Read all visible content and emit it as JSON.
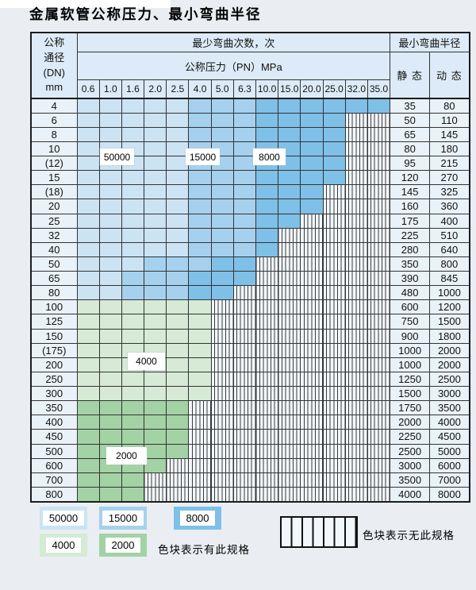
{
  "title": "金属软管公称压力、最小弯曲半径",
  "table": {
    "dn_header": [
      "公称",
      "通径",
      "(DN)",
      "mm"
    ],
    "bend_times_header": "最少弯曲次数，次",
    "pressure_header": "公称压力（PN）MPa",
    "radius_header": "最小弯曲半径",
    "static_header": "静 态",
    "dynamic_header": "动 态",
    "pressures": [
      "0.6",
      "1.0",
      "1.6",
      "2.0",
      "2.5",
      "4.0",
      "5.0",
      "6.3",
      "10.0",
      "15.0",
      "20.0",
      "25.0",
      "32.0",
      "35.0"
    ],
    "rows": [
      {
        "dn": "4",
        "fill": "blue",
        "shades": [
          4,
          7
        ],
        "last_colored_col": 13,
        "static": "35",
        "dynamic": "80"
      },
      {
        "dn": "6",
        "fill": "blue",
        "shades": [
          4,
          7
        ],
        "last_colored_col": 11,
        "static": "50",
        "dynamic": "110"
      },
      {
        "dn": "8",
        "fill": "blue",
        "shades": [
          4,
          7
        ],
        "last_colored_col": 11,
        "static": "65",
        "dynamic": "145"
      },
      {
        "dn": "10",
        "fill": "blue",
        "shades": [
          4,
          7
        ],
        "last_colored_col": 11,
        "static": "80",
        "dynamic": "180"
      },
      {
        "dn": "(12)",
        "fill": "blue",
        "shades": [
          4,
          7
        ],
        "last_colored_col": 11,
        "static": "95",
        "dynamic": "215"
      },
      {
        "dn": "15",
        "fill": "blue",
        "shades": [
          4,
          7
        ],
        "last_colored_col": 11,
        "static": "120",
        "dynamic": "270"
      },
      {
        "dn": "(18)",
        "fill": "blue",
        "shades": [
          4,
          7
        ],
        "last_colored_col": 10,
        "static": "145",
        "dynamic": "325"
      },
      {
        "dn": "20",
        "fill": "blue",
        "shades": [
          4,
          7
        ],
        "last_colored_col": 10,
        "static": "160",
        "dynamic": "360"
      },
      {
        "dn": "25",
        "fill": "blue",
        "shades": [
          4,
          7
        ],
        "last_colored_col": 9,
        "static": "175",
        "dynamic": "400"
      },
      {
        "dn": "32",
        "fill": "blue",
        "shades": [
          4,
          7
        ],
        "last_colored_col": 8,
        "static": "225",
        "dynamic": "510"
      },
      {
        "dn": "40",
        "fill": "blue",
        "shades": [
          4,
          7
        ],
        "last_colored_col": 8,
        "static": "280",
        "dynamic": "640"
      },
      {
        "dn": "50",
        "fill": "blue",
        "shades": [
          2,
          5
        ],
        "last_colored_col": 7,
        "static": "350",
        "dynamic": "800"
      },
      {
        "dn": "65",
        "fill": "blue",
        "shades": [
          1,
          4
        ],
        "last_colored_col": 7,
        "static": "390",
        "dynamic": "845"
      },
      {
        "dn": "80",
        "fill": "blue",
        "shades": [
          1,
          4
        ],
        "last_colored_col": 6,
        "static": "480",
        "dynamic": "1000"
      },
      {
        "dn": "100",
        "fill": "g1",
        "last_colored_col": 5,
        "static": "600",
        "dynamic": "1200"
      },
      {
        "dn": "125",
        "fill": "g1",
        "last_colored_col": 5,
        "static": "750",
        "dynamic": "1500"
      },
      {
        "dn": "150",
        "fill": "g1",
        "last_colored_col": 5,
        "static": "900",
        "dynamic": "1800"
      },
      {
        "dn": "(175)",
        "fill": "g1",
        "last_colored_col": 5,
        "static": "1000",
        "dynamic": "2000"
      },
      {
        "dn": "200",
        "fill": "g1",
        "last_colored_col": 5,
        "static": "1000",
        "dynamic": "2000"
      },
      {
        "dn": "250",
        "fill": "g1",
        "last_colored_col": 5,
        "static": "1250",
        "dynamic": "2500"
      },
      {
        "dn": "300",
        "fill": "g1",
        "last_colored_col": 5,
        "static": "1500",
        "dynamic": "3000"
      },
      {
        "dn": "350",
        "fill": "g2",
        "last_colored_col": 4,
        "static": "1750",
        "dynamic": "3500"
      },
      {
        "dn": "400",
        "fill": "g2",
        "last_colored_col": 4,
        "static": "2000",
        "dynamic": "4000"
      },
      {
        "dn": "450",
        "fill": "g2",
        "last_colored_col": 4,
        "static": "2250",
        "dynamic": "4500"
      },
      {
        "dn": "500",
        "fill": "g2",
        "last_colored_col": 4,
        "static": "2500",
        "dynamic": "5000"
      },
      {
        "dn": "600",
        "fill": "g2",
        "last_colored_col": 3,
        "static": "3000",
        "dynamic": "6000"
      },
      {
        "dn": "700",
        "fill": "g2",
        "last_colored_col": 2,
        "static": "3500",
        "dynamic": "7000"
      },
      {
        "dn": "800",
        "fill": "g2",
        "last_colored_col": 2,
        "static": "4000",
        "dynamic": "8000"
      }
    ]
  },
  "region_labels": [
    {
      "text": "50000"
    },
    {
      "text": "15000"
    },
    {
      "text": "8000"
    },
    {
      "text": "4000"
    },
    {
      "text": "2000"
    }
  ],
  "legend": {
    "swatches": [
      {
        "text": "50000"
      },
      {
        "text": "15000"
      },
      {
        "text": "8000"
      },
      {
        "text": "4000"
      },
      {
        "text": "2000"
      }
    ],
    "has_spec_text": "色块表示有此规格",
    "no_spec_text": "色块表示无此规格"
  },
  "colors": {
    "page_bg": "#eaeef2",
    "header_bg": "#dcebf7",
    "cell_bg": "#e9f1f9",
    "grid": "#333333",
    "hatch_bg": "#f2f7fc",
    "blue_50000": "#cce3f4",
    "blue_15000": "#a5d1ee",
    "blue_8000": "#7fc0e8",
    "green_4000": "#d6ead5",
    "green_2000": "#a3d2a4"
  }
}
